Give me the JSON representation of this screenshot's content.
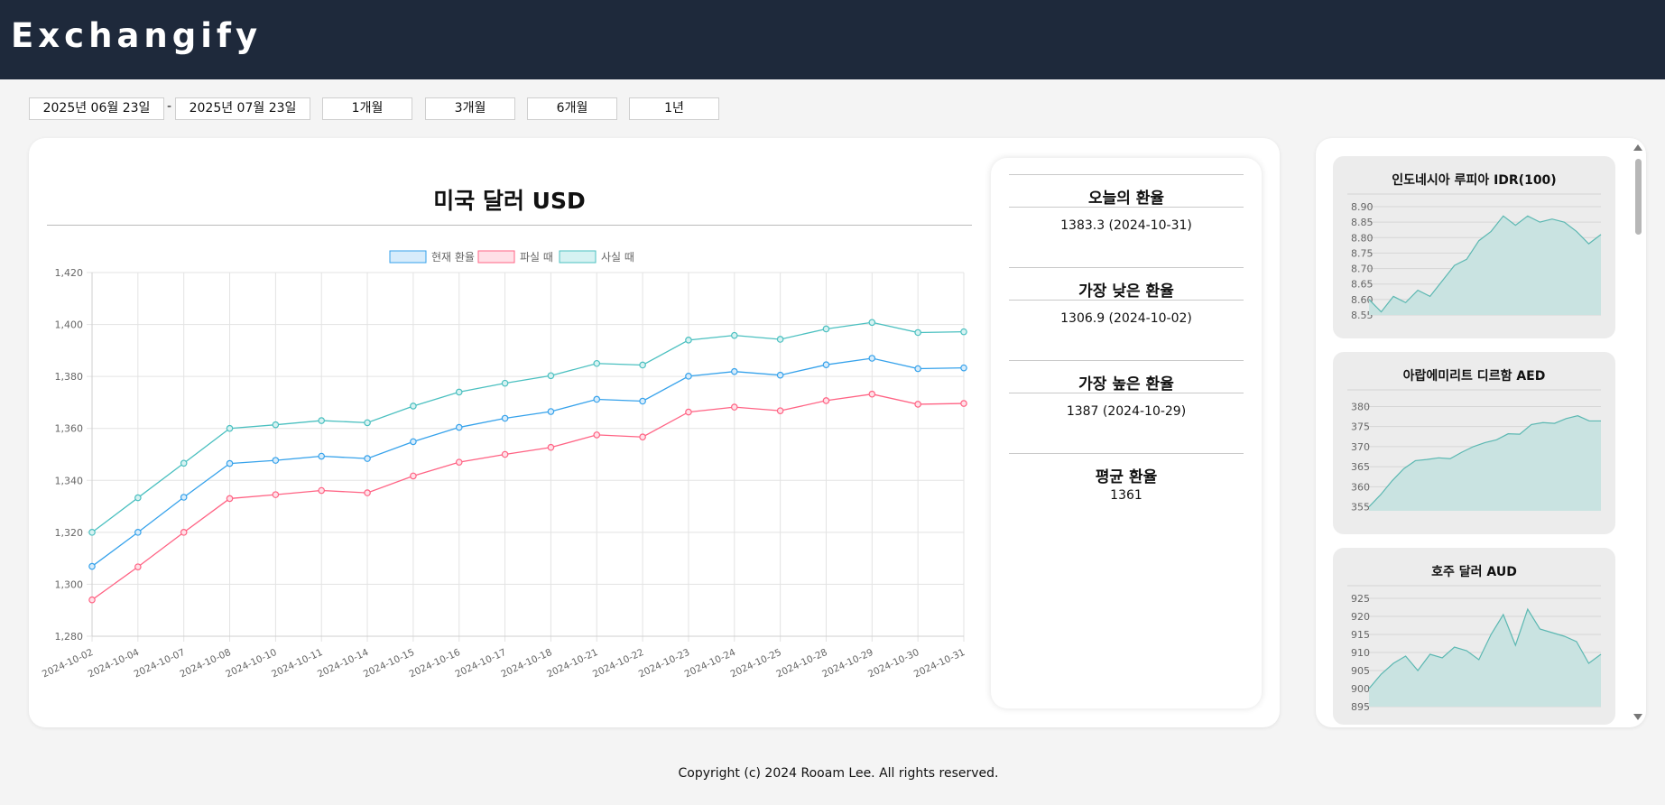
{
  "app": {
    "title": "Exchangify"
  },
  "filters": {
    "start_date": "2025년 06월 23일",
    "separator": "-",
    "end_date": "2025년 07월 23일",
    "ranges": [
      "1개월",
      "3개월",
      "6개월",
      "1년"
    ]
  },
  "main": {
    "title": "미국 달러 USD"
  },
  "stats": {
    "today_label": "오늘의 환율",
    "today_value": "1383.3 (2024-10-31)",
    "low_label": "가장 낮은 환율",
    "low_value": "1306.9 (2024-10-02)",
    "high_label": "가장 높은 환율",
    "high_value": "1387 (2024-10-29)",
    "avg_label": "평균 환율",
    "avg_value": "1361"
  },
  "chart_data": [
    {
      "type": "line",
      "title": "미국 달러 USD",
      "categories": [
        "2024-10-02",
        "2024-10-04",
        "2024-10-07",
        "2024-10-08",
        "2024-10-10",
        "2024-10-11",
        "2024-10-14",
        "2024-10-15",
        "2024-10-16",
        "2024-10-17",
        "2024-10-18",
        "2024-10-21",
        "2024-10-22",
        "2024-10-23",
        "2024-10-24",
        "2024-10-25",
        "2024-10-28",
        "2024-10-29",
        "2024-10-30",
        "2024-10-31"
      ],
      "ylim": [
        1280,
        1420
      ],
      "yticks": [
        "1,280",
        "1,300",
        "1,320",
        "1,340",
        "1,360",
        "1,380",
        "1,400",
        "1,420"
      ],
      "grid": true,
      "legend_position": "top",
      "series": [
        {
          "name": "현재 환율",
          "color": "#36a2eb",
          "fill": "#d7ecfb",
          "values": [
            1306.9,
            1320,
            1333.5,
            1346.5,
            1347.7,
            1349.3,
            1348.4,
            1354.9,
            1360.4,
            1363.9,
            1366.5,
            1371.2,
            1370.5,
            1380.1,
            1381.9,
            1380.5,
            1384.5,
            1387,
            1383,
            1383.3
          ]
        },
        {
          "name": "파실 때",
          "color": "#ff6384",
          "fill": "#ffe0e7",
          "values": [
            1294,
            1306.7,
            1320,
            1333,
            1334.5,
            1336.1,
            1335.2,
            1341.7,
            1347,
            1350,
            1352.7,
            1357.5,
            1356.7,
            1366.3,
            1368.2,
            1366.8,
            1370.7,
            1373.2,
            1369.3,
            1369.6
          ]
        },
        {
          "name": "사실 때",
          "color": "#4bc0c0",
          "fill": "#d6f2f2",
          "values": [
            1320,
            1333.3,
            1346.6,
            1360,
            1361.4,
            1363,
            1362.2,
            1368.6,
            1374,
            1377.4,
            1380.3,
            1385,
            1384.4,
            1394,
            1395.8,
            1394.3,
            1398.3,
            1400.8,
            1396.9,
            1397.2
          ]
        }
      ]
    },
    {
      "type": "area",
      "title": "인도네시아 루피아 IDR(100)",
      "ylim": [
        8.55,
        8.9
      ],
      "yticks": [
        "8.55",
        "8.60",
        "8.65",
        "8.70",
        "8.75",
        "8.80",
        "8.85",
        "8.90"
      ],
      "color": "#5cb8b2",
      "values": [
        8.6,
        8.56,
        8.61,
        8.59,
        8.63,
        8.61,
        8.66,
        8.71,
        8.73,
        8.79,
        8.82,
        8.87,
        8.84,
        8.87,
        8.85,
        8.86,
        8.85,
        8.82,
        8.78,
        8.81
      ]
    },
    {
      "type": "area",
      "title": "아랍에미리트 디르함 AED",
      "ylim": [
        354,
        381
      ],
      "yticks": [
        "355",
        "360",
        "365",
        "370",
        "375",
        "380"
      ],
      "color": "#5cb8b2",
      "values": [
        355,
        358,
        361.5,
        364.5,
        366.5,
        366.8,
        367.2,
        367,
        368.6,
        370,
        371,
        371.7,
        373.2,
        373.1,
        375.5,
        376,
        375.8,
        377,
        377.7,
        376.4,
        376.4
      ]
    },
    {
      "type": "area",
      "title": "호주 달러 AUD",
      "ylim": [
        895,
        925
      ],
      "yticks": [
        "895",
        "900",
        "905",
        "910",
        "915",
        "920",
        "925"
      ],
      "color": "#5cb8b2",
      "values": [
        900,
        904,
        907,
        909,
        905,
        909.5,
        908.5,
        911.5,
        910.5,
        908,
        915,
        920.5,
        912,
        922,
        916.5,
        915.5,
        914.5,
        913,
        907,
        909.5
      ]
    }
  ],
  "footer": {
    "copyright": "Copyright (c) 2024 Rooam Lee. All rights reserved."
  }
}
